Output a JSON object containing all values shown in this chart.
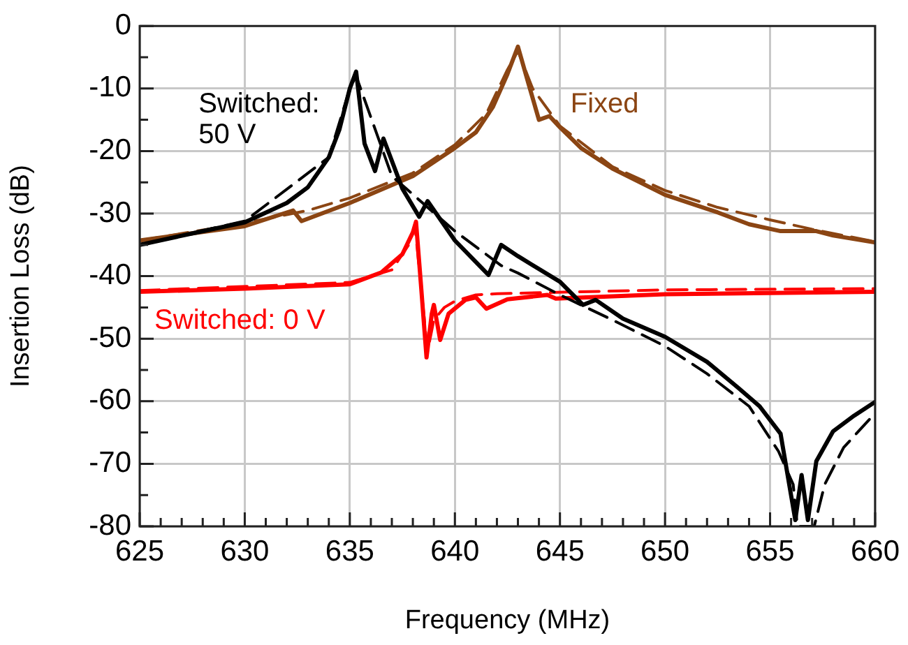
{
  "chart_data": {
    "type": "line",
    "xlabel": "Frequency (MHz)",
    "ylabel": "Insertion Loss (dB)",
    "xlim": [
      625,
      660
    ],
    "ylim": [
      -80,
      0
    ],
    "xticks": [
      625,
      {
        "value": 626,
        "label": null
      },
      {
        "value": 627,
        "label": null
      },
      {
        "value": 628,
        "label": null
      },
      {
        "value": 629,
        "label": null
      },
      630,
      {
        "value": 631,
        "label": null
      },
      {
        "value": 632,
        "label": null
      },
      {
        "value": 633,
        "label": null
      },
      {
        "value": 634,
        "label": null
      },
      635,
      {
        "value": 636,
        "label": null
      },
      {
        "value": 637,
        "label": null
      },
      {
        "value": 638,
        "label": null
      },
      {
        "value": 639,
        "label": null
      },
      640,
      {
        "value": 641,
        "label": null
      },
      {
        "value": 642,
        "label": null
      },
      {
        "value": 643,
        "label": null
      },
      {
        "value": 644,
        "label": null
      },
      645,
      {
        "value": 646,
        "label": null
      },
      {
        "value": 647,
        "label": null
      },
      {
        "value": 648,
        "label": null
      },
      {
        "value": 649,
        "label": null
      },
      650,
      {
        "value": 651,
        "label": null
      },
      {
        "value": 652,
        "label": null
      },
      {
        "value": 653,
        "label": null
      },
      {
        "value": 654,
        "label": null
      },
      655,
      {
        "value": 656,
        "label": null
      },
      {
        "value": 657,
        "label": null
      },
      {
        "value": 658,
        "label": null
      },
      {
        "value": 659,
        "label": null
      },
      660
    ],
    "yticks": [
      -80,
      {
        "value": -75,
        "label": null
      },
      -70,
      {
        "value": -65,
        "label": null
      },
      -60,
      {
        "value": -55,
        "label": null
      },
      -50,
      {
        "value": -45,
        "label": null
      },
      -40,
      {
        "value": -35,
        "label": null
      },
      -30,
      {
        "value": -25,
        "label": null
      },
      -20,
      {
        "value": -15,
        "label": null
      },
      -10,
      {
        "value": -5,
        "label": null
      },
      0
    ],
    "grid": true,
    "legend": false,
    "marker": "none",
    "series": [
      {
        "name": "Switched: 50 V",
        "color": "#000000",
        "line_style": "solid",
        "x": [
          625,
          627.6,
          630,
          632,
          633,
          634,
          634.5,
          635,
          635.3,
          635.7,
          636.2,
          636.6,
          637.5,
          638.3,
          638.7,
          640,
          641.6,
          642.2,
          643,
          645,
          646.1,
          646.7,
          648,
          650,
          652,
          653.5,
          654.5,
          655.5,
          656.2,
          656.5,
          656.8,
          657.2,
          658,
          659,
          660
        ],
        "values": [
          -35,
          -33.1,
          -31.4,
          -28.3,
          -25.8,
          -21,
          -16.6,
          -10,
          -7.3,
          -18.8,
          -23.2,
          -18,
          -26,
          -30.5,
          -28,
          -34.3,
          -39.8,
          -35,
          -36.8,
          -40.9,
          -44.6,
          -43.8,
          -46.8,
          -49.7,
          -53.7,
          -57.9,
          -60.8,
          -65.2,
          -79,
          -71.8,
          -79,
          -69.6,
          -64.8,
          -62.3,
          -60.1
        ]
      },
      {
        "color": "#000000",
        "line_style": "dashed",
        "x": [
          625,
          630,
          634,
          635,
          635.3,
          637,
          640,
          642.2,
          643,
          645,
          647.5,
          650,
          652,
          654,
          655.4,
          656.1,
          656.3,
          657.1,
          657.6,
          658.5,
          660
        ],
        "values": [
          -35,
          -31.2,
          -21,
          -10,
          -8,
          -24,
          -32.8,
          -38.3,
          -39.5,
          -43,
          -47,
          -51.2,
          -55.6,
          -60.8,
          -68,
          -73.3,
          -80,
          -80,
          -73.3,
          -67.4,
          -61.9
        ]
      },
      {
        "name": "Fixed",
        "color": "#8b4513",
        "line_style": "solid",
        "x": [
          625,
          630,
          632.3,
          632.7,
          635,
          638,
          640,
          641,
          641.8,
          642.5,
          643,
          643.5,
          644,
          644.5,
          645,
          646,
          647.5,
          650,
          652.5,
          654,
          655.5,
          657.2,
          658,
          660
        ],
        "values": [
          -34.3,
          -32,
          -29.5,
          -31.2,
          -28.3,
          -24,
          -19.5,
          -17,
          -13,
          -7.7,
          -3.3,
          -9.2,
          -15,
          -14.4,
          -16.2,
          -19.5,
          -22.8,
          -27,
          -29.8,
          -31.7,
          -32.8,
          -32.8,
          -33.5,
          -34.6
        ]
      },
      {
        "color": "#8b4513",
        "line_style": "dashed",
        "x": [
          625,
          630,
          633,
          635,
          638,
          640,
          641.5,
          642.5,
          643,
          643.7,
          645,
          647.5,
          650,
          652.5,
          655,
          657,
          660
        ],
        "values": [
          -34.3,
          -31.5,
          -29.5,
          -27.5,
          -23.5,
          -19,
          -14,
          -7,
          -4,
          -10,
          -16,
          -22.5,
          -26.3,
          -29,
          -31,
          -32.5,
          -34.5
        ]
      },
      {
        "name": "Switched: 0 V",
        "color": "#ff0000",
        "line_style": "solid",
        "x": [
          625,
          630,
          635,
          636.5,
          637.5,
          638,
          638.15,
          638.4,
          638.65,
          638.9,
          639,
          639.3,
          639.7,
          640.5,
          641,
          641.5,
          642.5,
          644.4,
          644.8,
          650,
          660
        ],
        "values": [
          -42.5,
          -42,
          -41.3,
          -39.4,
          -36.5,
          -33,
          -31.3,
          -42,
          -53,
          -46,
          -44.6,
          -50.2,
          -46,
          -43.8,
          -43.4,
          -45.2,
          -43.7,
          -43,
          -43.6,
          -42.9,
          -42.5
        ]
      },
      {
        "color": "#ff0000",
        "line_style": "dashed",
        "x": [
          625,
          635,
          637,
          637.8,
          638.1,
          638.4,
          638.7,
          639,
          639.5,
          640,
          641,
          642,
          650,
          660
        ],
        "values": [
          -42.3,
          -41,
          -39,
          -35,
          -32,
          -42,
          -52,
          -47,
          -45,
          -44,
          -43,
          -42.8,
          -42.2,
          -42
        ]
      }
    ]
  }
}
